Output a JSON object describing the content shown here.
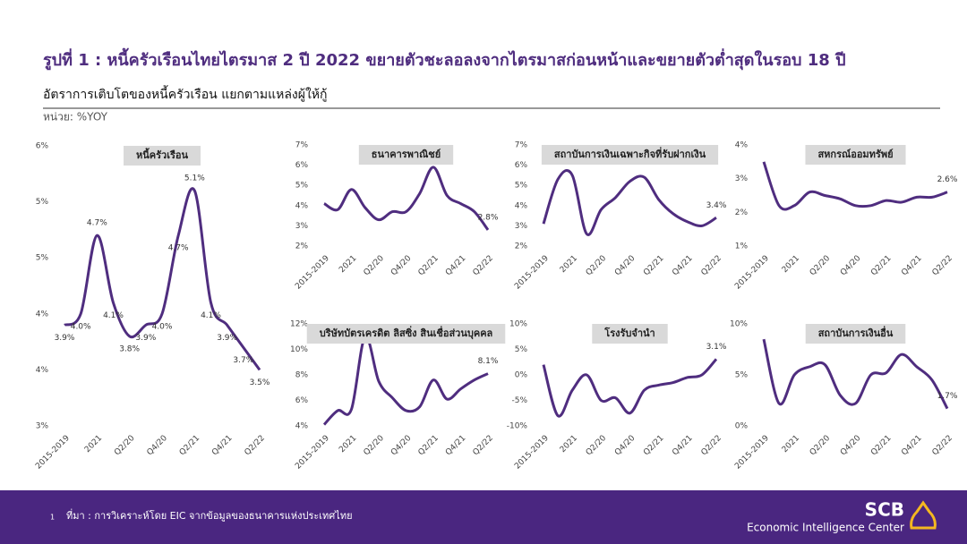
{
  "header": {
    "title": "รูปที่ 1 : หนี้ครัวเรือนไทยไตรมาส 2 ปี 2022 ขยายตัวชะลอลงจากไตรมาสก่อนหน้าและขยายตัวต่ำสุดในรอบ 18 ปี",
    "subtitle": "อัตราการเติบโตของหนี้ครัวเรือน แยกตามแหล่งผู้ให้กู้",
    "unit": "หน่วย: %YOY"
  },
  "chart_data": [
    {
      "type": "line",
      "title": "หนี้ครัวเรือน",
      "color": "#4f2d7f",
      "categories": [
        "2015-2019",
        null,
        "2021",
        null,
        "Q2/20",
        null,
        "Q4/20",
        null,
        "Q2/21",
        null,
        "Q4/21",
        null,
        "Q2/22"
      ],
      "values": [
        3.9,
        4.0,
        4.7,
        4.1,
        3.8,
        3.9,
        4.0,
        4.7,
        5.1,
        4.1,
        3.9,
        3.7,
        3.5
      ],
      "value_labels": [
        "3.9%",
        "4.0%",
        "4.7%",
        "4.1%",
        "3.8%",
        "3.9%",
        "4.0%",
        "4.7%",
        "5.1%",
        "4.1%",
        "3.9%",
        "3.7%",
        "3.5%"
      ],
      "ylim": [
        3,
        5.5
      ],
      "yticks": [
        {
          "value": 3,
          "label": "3%"
        },
        {
          "value": 3.5,
          "label": "4%"
        },
        {
          "value": 4,
          "label": "4%"
        },
        {
          "value": 4.5,
          "label": "5%"
        },
        {
          "value": 5,
          "label": "5%"
        },
        {
          "value": 5.5,
          "label": "6%"
        }
      ]
    },
    {
      "type": "line",
      "title": "ธนาคารพาณิชย์",
      "color": "#4f2d7f",
      "categories": [
        "2015-2019",
        null,
        "2021",
        null,
        "Q2/20",
        null,
        "Q4/20",
        null,
        "Q2/21",
        null,
        "Q4/21",
        null,
        "Q2/22"
      ],
      "values": [
        4.1,
        3.8,
        4.8,
        3.9,
        3.3,
        3.7,
        3.7,
        4.6,
        5.9,
        4.5,
        4.1,
        3.7,
        2.8
      ],
      "value_labels": [
        null,
        null,
        null,
        null,
        null,
        null,
        null,
        null,
        null,
        null,
        null,
        null,
        "2.8%"
      ],
      "ylim": [
        2,
        7
      ],
      "yticks": [
        {
          "value": 2,
          "label": "2%"
        },
        {
          "value": 3,
          "label": "3%"
        },
        {
          "value": 4,
          "label": "4%"
        },
        {
          "value": 5,
          "label": "5%"
        },
        {
          "value": 6,
          "label": "6%"
        },
        {
          "value": 7,
          "label": "7%"
        }
      ]
    },
    {
      "type": "line",
      "title": "สถาบันการเงินเฉพาะกิจที่รับฝากเงิน",
      "color": "#4f2d7f",
      "categories": [
        "2015-2019",
        null,
        "2021",
        null,
        "Q2/20",
        null,
        "Q4/20",
        null,
        "Q2/21",
        null,
        "Q4/21",
        null,
        "Q2/22"
      ],
      "values": [
        3.1,
        5.3,
        5.5,
        2.6,
        3.8,
        4.4,
        5.2,
        5.4,
        4.3,
        3.6,
        3.2,
        3.0,
        3.4
      ],
      "value_labels": [
        null,
        null,
        null,
        null,
        null,
        null,
        null,
        null,
        null,
        null,
        null,
        null,
        "3.4%"
      ],
      "ylim": [
        2,
        7
      ],
      "yticks": [
        {
          "value": 2,
          "label": "2%"
        },
        {
          "value": 3,
          "label": "3%"
        },
        {
          "value": 4,
          "label": "4%"
        },
        {
          "value": 5,
          "label": "5%"
        },
        {
          "value": 6,
          "label": "6%"
        },
        {
          "value": 7,
          "label": "7%"
        }
      ]
    },
    {
      "type": "line",
      "title": "สหกรณ์ออมทรัพย์",
      "color": "#4f2d7f",
      "categories": [
        "2015-2019",
        null,
        "2021",
        null,
        "Q2/20",
        null,
        "Q4/20",
        null,
        "Q2/21",
        null,
        "Q4/21",
        null,
        "Q2/22"
      ],
      "values": [
        3.5,
        2.2,
        2.2,
        2.6,
        2.5,
        2.4,
        2.2,
        2.2,
        2.35,
        2.3,
        2.45,
        2.45,
        2.6
      ],
      "value_labels": [
        null,
        null,
        null,
        null,
        null,
        null,
        null,
        null,
        null,
        null,
        null,
        null,
        "2.6%"
      ],
      "ylim": [
        1,
        4
      ],
      "yticks": [
        {
          "value": 1,
          "label": "1%"
        },
        {
          "value": 2,
          "label": "2%"
        },
        {
          "value": 3,
          "label": "3%"
        },
        {
          "value": 4,
          "label": "4%"
        }
      ]
    },
    {
      "type": "line",
      "title": "บริษัทบัตรเครดิต ลิสซิ่ง สินเชื่อส่วนบุคคล",
      "color": "#4f2d7f",
      "categories": [
        "2015-2019",
        null,
        "2021",
        null,
        "Q2/20",
        null,
        "Q4/20",
        null,
        "Q2/21",
        null,
        "Q4/21",
        null,
        "Q2/22"
      ],
      "values": [
        4.1,
        5.2,
        5.3,
        11.0,
        7.5,
        6.2,
        5.2,
        5.5,
        7.6,
        6.1,
        6.9,
        7.6,
        8.1
      ],
      "value_labels": [
        null,
        null,
        null,
        null,
        null,
        null,
        null,
        null,
        null,
        null,
        null,
        null,
        "8.1%"
      ],
      "ylim": [
        4,
        12
      ],
      "yticks": [
        {
          "value": 4,
          "label": "4%"
        },
        {
          "value": 6,
          "label": "6%"
        },
        {
          "value": 8,
          "label": "8%"
        },
        {
          "value": 10,
          "label": "10%"
        },
        {
          "value": 12,
          "label": "12%"
        }
      ]
    },
    {
      "type": "line",
      "title": "โรงรับจำนำ",
      "color": "#4f2d7f",
      "categories": [
        "2015-2019",
        null,
        "2021",
        null,
        "Q2/20",
        null,
        "Q4/20",
        null,
        "Q2/21",
        null,
        "Q4/21",
        null,
        "Q2/22"
      ],
      "values": [
        2,
        -8,
        -3,
        0,
        -5,
        -4.5,
        -7.5,
        -3,
        -2,
        -1.5,
        -0.5,
        0,
        3.1
      ],
      "value_labels": [
        null,
        null,
        null,
        null,
        null,
        null,
        null,
        null,
        null,
        null,
        null,
        null,
        "3.1%"
      ],
      "ylim": [
        -10,
        10
      ],
      "yticks": [
        {
          "value": -10,
          "label": "-10%"
        },
        {
          "value": -5,
          "label": "-5%"
        },
        {
          "value": 0,
          "label": "0%"
        },
        {
          "value": 5,
          "label": "5%"
        },
        {
          "value": 10,
          "label": "10%"
        }
      ]
    },
    {
      "type": "line",
      "title": "สถาบันการเงินอื่น",
      "color": "#4f2d7f",
      "categories": [
        "2015-2019",
        null,
        "2021",
        null,
        "Q2/20",
        null,
        "Q4/20",
        null,
        "Q2/21",
        null,
        "Q4/21",
        null,
        "Q2/22"
      ],
      "values": [
        8.5,
        2.2,
        5,
        5.8,
        6,
        3,
        2.2,
        5,
        5.2,
        7,
        5.8,
        4.5,
        1.7
      ],
      "value_labels": [
        null,
        null,
        null,
        null,
        null,
        null,
        null,
        null,
        null,
        null,
        null,
        null,
        "1.7%"
      ],
      "ylim": [
        0,
        10
      ],
      "yticks": [
        {
          "value": 0,
          "label": "0%"
        },
        {
          "value": 5,
          "label": "5%"
        },
        {
          "value": 10,
          "label": "10%"
        }
      ]
    }
  ],
  "footer": {
    "page_number": 1,
    "source": "ที่มา : การวิเคราะห์โดย EIC จากข้อมูลของธนาคารแห่งประเทศไทย",
    "logo": "SCB",
    "center": "Economic Intelligence Center"
  }
}
